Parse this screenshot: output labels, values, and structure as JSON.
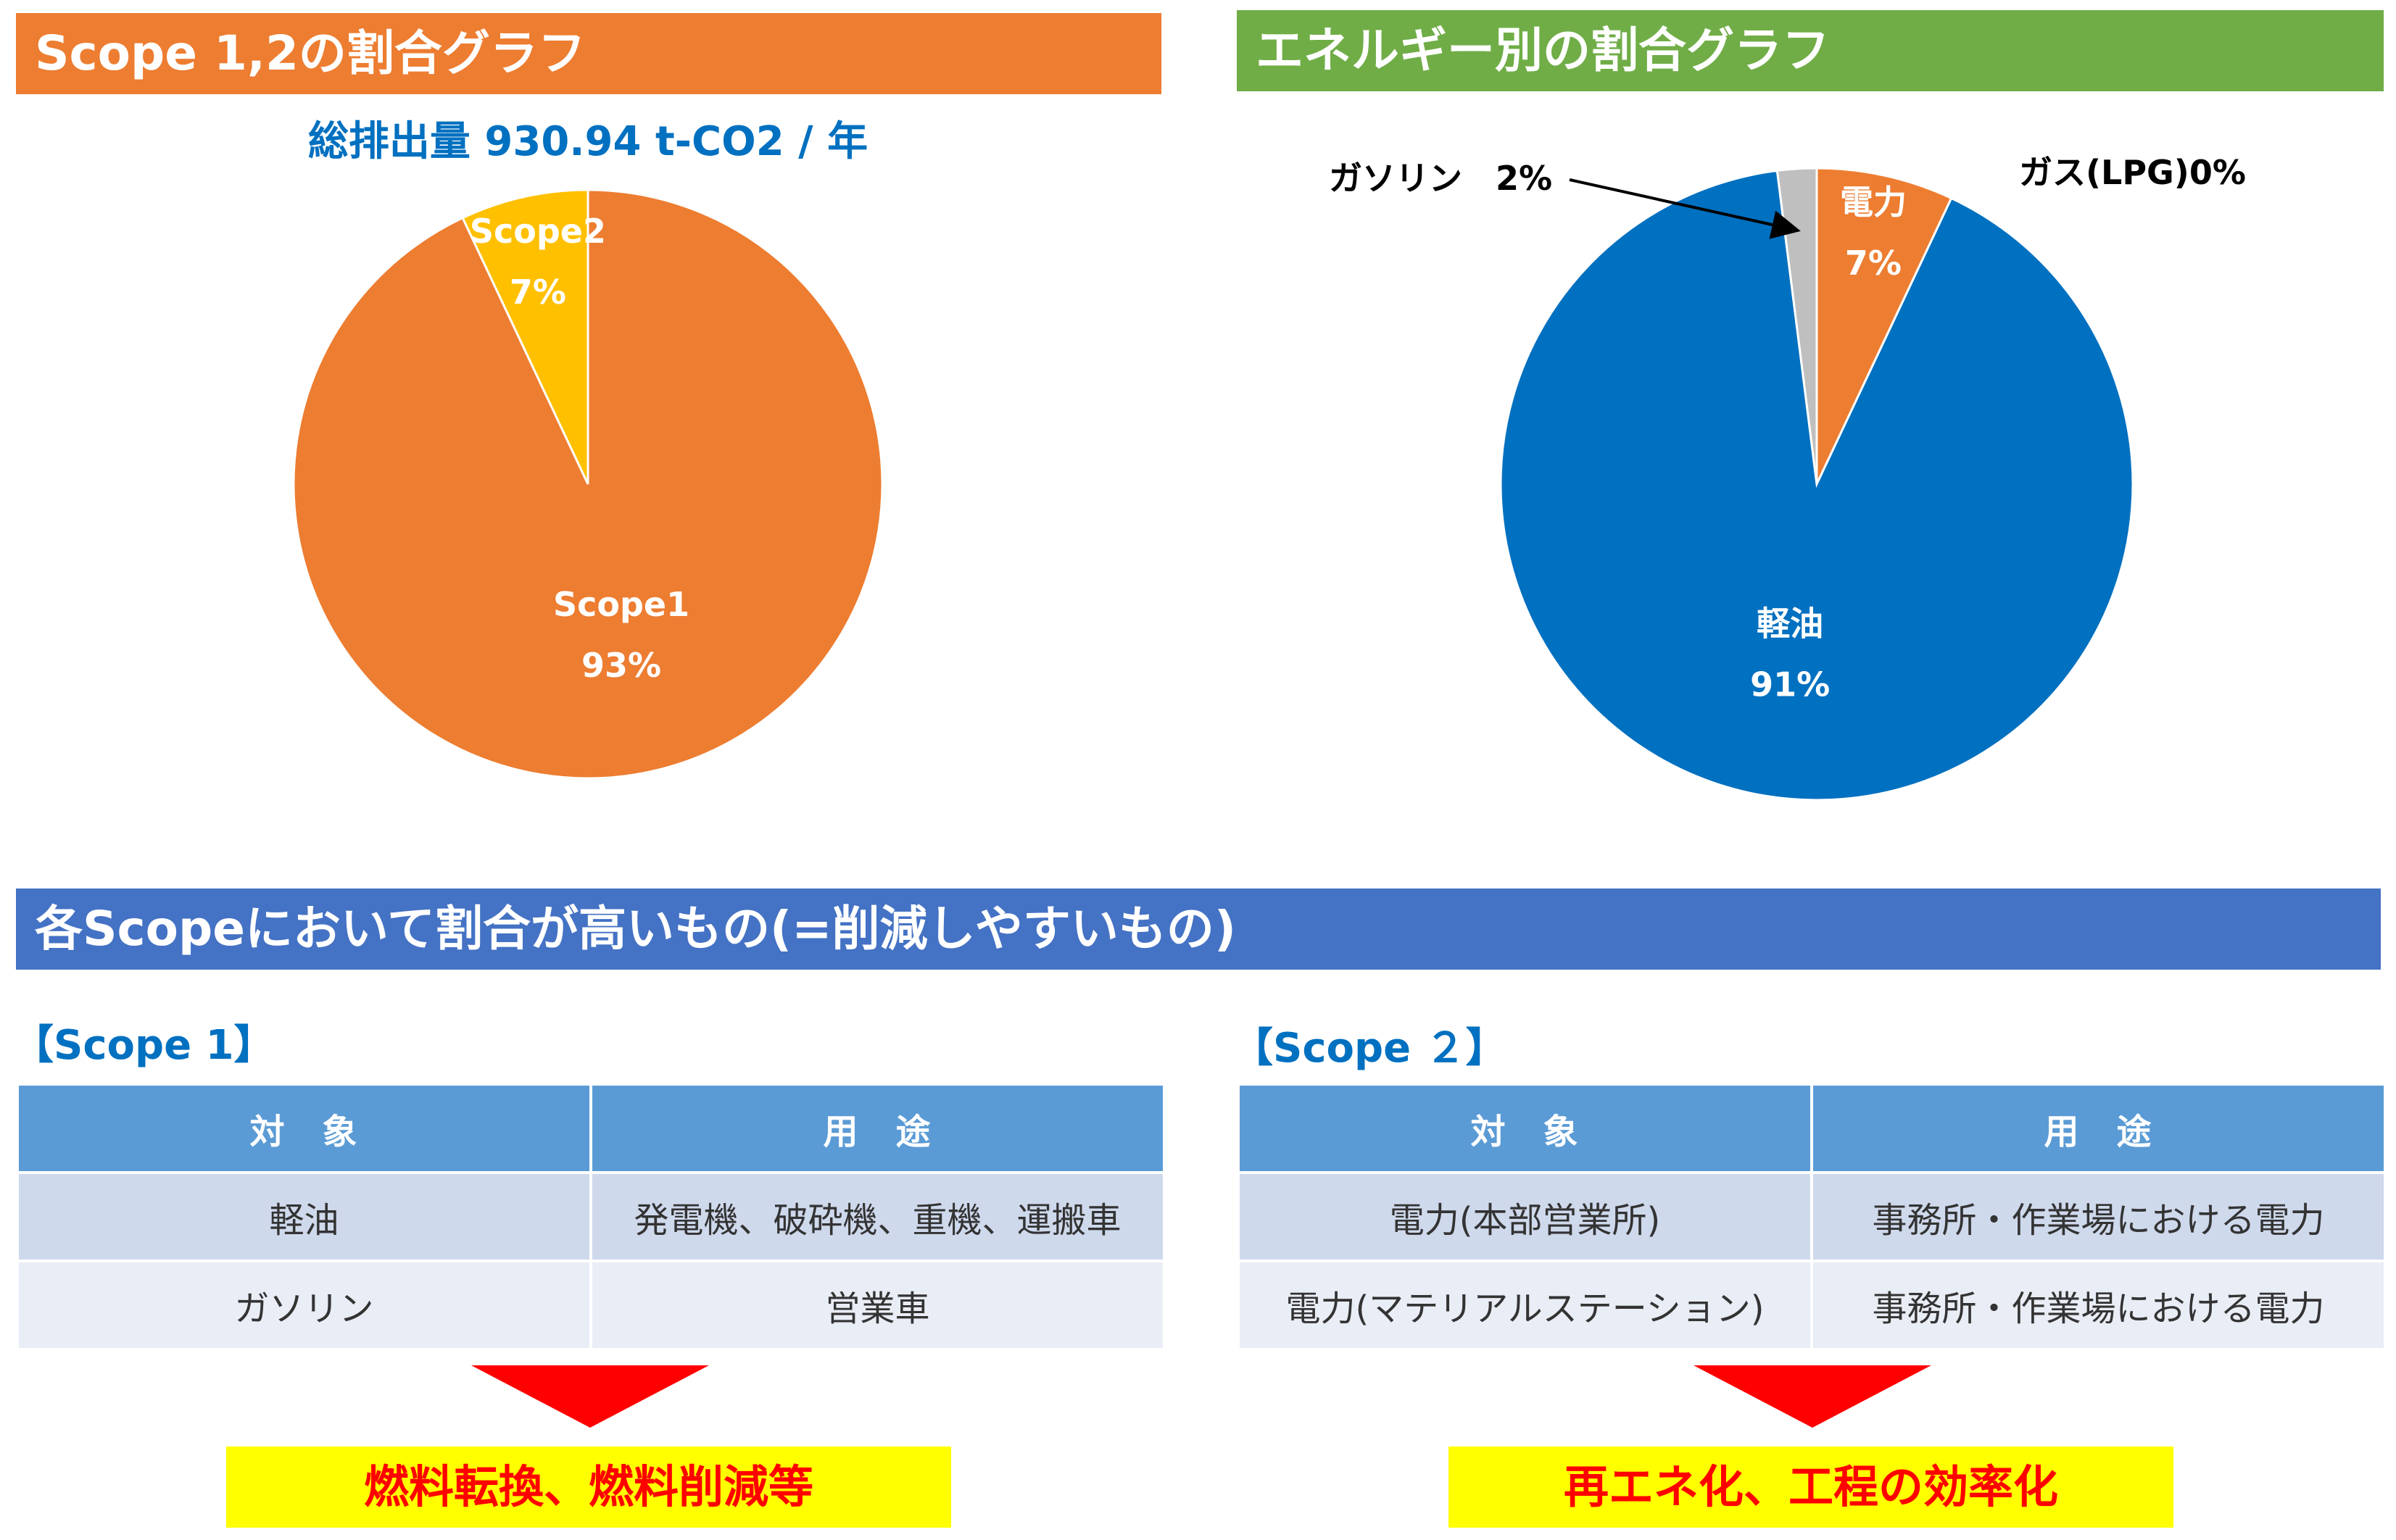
{
  "colors": {
    "orange": "#ed7d31",
    "yellow": "#ffc000",
    "blue": "#0070c0",
    "gray": "#bfbfbf",
    "banner_green": "#70ad47",
    "banner_blue": "#4472c4",
    "table_header": "#5b9bd5",
    "highlight_yellow": "#ffff00",
    "highlight_red": "#ff0000"
  },
  "banners": {
    "scope_chart_title": "Scope 1,2の割合グラフ",
    "energy_chart_title": "エネルギー別の割合グラフ",
    "reduction_title": "各Scopeにおいて割合が高いもの(=削減しやすいもの)"
  },
  "chart_data": [
    {
      "type": "pie",
      "title": "総排出量 930.94 t-CO2 / 年",
      "slices": [
        {
          "label": "Scope1",
          "value": 93,
          "pct_text": "93%",
          "color": "#ed7d31"
        },
        {
          "label": "Scope2",
          "value": 7,
          "pct_text": "7%",
          "color": "#ffc000"
        }
      ]
    },
    {
      "type": "pie",
      "title": "",
      "slices": [
        {
          "label": "電力",
          "value": 7,
          "pct_text": "7%",
          "color": "#ed7d31"
        },
        {
          "label": "軽油",
          "value": 91,
          "pct_text": "91%",
          "color": "#0070c0"
        },
        {
          "label": "ガソリン",
          "value": 2,
          "pct_text": "2%",
          "color": "#bfbfbf"
        },
        {
          "label": "ガス(LPG)",
          "value": 0,
          "pct_text": "0%",
          "color": "#a5a5a5"
        }
      ],
      "callouts": {
        "gasoline": "ガソリン　2%",
        "lpg": "ガス(LPG)0%"
      }
    }
  ],
  "scope1": {
    "label": "【Scope 1】",
    "headers": [
      "対　象",
      "用　途"
    ],
    "rows": [
      [
        "軽油",
        "発電機、破砕機、重機、運搬車"
      ],
      [
        "ガソリン",
        "営業車"
      ]
    ],
    "result": "燃料転換、燃料削減等"
  },
  "scope2": {
    "label": "【Scope ２】",
    "headers": [
      "対　象",
      "用　途"
    ],
    "rows": [
      [
        "電力(本部営業所)",
        "事務所・作業場における電力"
      ],
      [
        "電力(マテリアルステーション)",
        "事務所・作業場における電力"
      ]
    ],
    "result": "再エネ化、工程の効率化"
  }
}
